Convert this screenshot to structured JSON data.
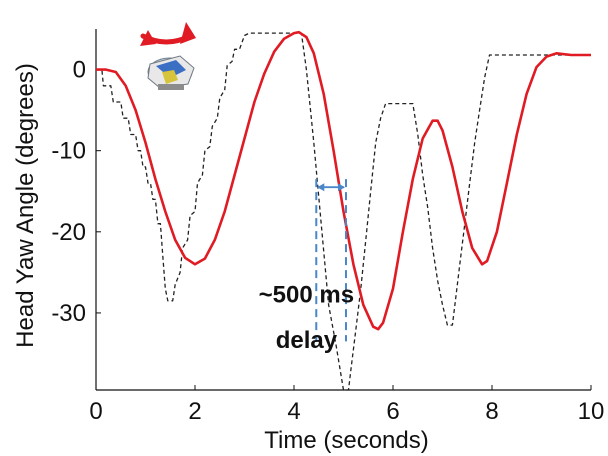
{
  "chart_data": {
    "type": "line",
    "title": "",
    "xlabel": "Time (seconds)",
    "ylabel": "Head Yaw Angle (degrees)",
    "xlim": [
      0,
      10
    ],
    "ylim": [
      -39.5,
      5
    ],
    "xticks": [
      0,
      2,
      4,
      6,
      8,
      10
    ],
    "yticks": [
      0,
      -10,
      -20,
      -30
    ],
    "grid": false,
    "legend": "none",
    "series": [
      {
        "style": "dashed",
        "color": "#222222",
        "points": [
          [
            0,
            0
          ],
          [
            0.12,
            0
          ],
          [
            0.15,
            -2
          ],
          [
            0.3,
            -2
          ],
          [
            0.35,
            -4
          ],
          [
            0.5,
            -4
          ],
          [
            0.55,
            -6
          ],
          [
            0.65,
            -6
          ],
          [
            0.7,
            -8
          ],
          [
            0.8,
            -8
          ],
          [
            0.85,
            -10
          ],
          [
            0.9,
            -10
          ],
          [
            0.95,
            -12
          ],
          [
            1.0,
            -12
          ],
          [
            1.05,
            -14
          ],
          [
            1.1,
            -14
          ],
          [
            1.15,
            -16
          ],
          [
            1.2,
            -16
          ],
          [
            1.25,
            -19
          ],
          [
            1.3,
            -19
          ],
          [
            1.35,
            -23
          ],
          [
            1.4,
            -27
          ],
          [
            1.45,
            -28.5
          ],
          [
            1.55,
            -28.5
          ],
          [
            1.6,
            -26.5
          ],
          [
            1.7,
            -25
          ],
          [
            1.75,
            -22
          ],
          [
            1.85,
            -21
          ],
          [
            1.9,
            -18
          ],
          [
            2.0,
            -17.5
          ],
          [
            2.05,
            -14
          ],
          [
            2.15,
            -13
          ],
          [
            2.2,
            -10
          ],
          [
            2.3,
            -9.5
          ],
          [
            2.35,
            -7
          ],
          [
            2.45,
            -6
          ],
          [
            2.5,
            -3.5
          ],
          [
            2.6,
            -2.5
          ],
          [
            2.65,
            0.5
          ],
          [
            2.75,
            1
          ],
          [
            2.8,
            2.5
          ],
          [
            2.9,
            2.5
          ],
          [
            3.0,
            4.2
          ],
          [
            3.1,
            4.5
          ],
          [
            4.0,
            4.5
          ],
          [
            4.15,
            4.5
          ],
          [
            4.25,
            0
          ],
          [
            4.4,
            -9
          ],
          [
            4.55,
            -19
          ],
          [
            4.7,
            -29
          ],
          [
            4.85,
            -34
          ],
          [
            5.0,
            -39.5
          ],
          [
            5.1,
            -39.5
          ],
          [
            5.15,
            -37
          ],
          [
            5.25,
            -32
          ],
          [
            5.35,
            -27
          ],
          [
            5.45,
            -21
          ],
          [
            5.55,
            -15
          ],
          [
            5.65,
            -9
          ],
          [
            5.75,
            -6
          ],
          [
            5.85,
            -4.2
          ],
          [
            6.4,
            -4.2
          ],
          [
            6.5,
            -8
          ],
          [
            6.6,
            -13
          ],
          [
            6.7,
            -17
          ],
          [
            6.8,
            -22
          ],
          [
            6.9,
            -26
          ],
          [
            7.0,
            -29
          ],
          [
            7.1,
            -31.5
          ],
          [
            7.2,
            -31.5
          ],
          [
            7.25,
            -29
          ],
          [
            7.35,
            -24
          ],
          [
            7.45,
            -19
          ],
          [
            7.55,
            -14
          ],
          [
            7.65,
            -9
          ],
          [
            7.75,
            -5
          ],
          [
            7.85,
            -1
          ],
          [
            7.95,
            1.8
          ],
          [
            9.0,
            1.8
          ],
          [
            10.0,
            1.8
          ]
        ]
      },
      {
        "style": "solid",
        "color": "#e01b24",
        "points": [
          [
            0,
            0
          ],
          [
            0.2,
            0
          ],
          [
            0.4,
            -0.3
          ],
          [
            0.6,
            -2
          ],
          [
            0.8,
            -5
          ],
          [
            1.0,
            -9
          ],
          [
            1.2,
            -13.5
          ],
          [
            1.4,
            -17.5
          ],
          [
            1.6,
            -21
          ],
          [
            1.8,
            -23.2
          ],
          [
            2.0,
            -24
          ],
          [
            2.2,
            -23.3
          ],
          [
            2.4,
            -21
          ],
          [
            2.6,
            -17.5
          ],
          [
            2.8,
            -13
          ],
          [
            3.0,
            -8.5
          ],
          [
            3.2,
            -4
          ],
          [
            3.4,
            -0.5
          ],
          [
            3.6,
            2.2
          ],
          [
            3.8,
            3.8
          ],
          [
            4.0,
            4.5
          ],
          [
            4.1,
            4.6
          ],
          [
            4.25,
            4
          ],
          [
            4.4,
            2
          ],
          [
            4.6,
            -3
          ],
          [
            4.8,
            -10
          ],
          [
            5.0,
            -17.5
          ],
          [
            5.2,
            -24
          ],
          [
            5.4,
            -29
          ],
          [
            5.6,
            -31.7
          ],
          [
            5.7,
            -32
          ],
          [
            5.8,
            -31.2
          ],
          [
            6.0,
            -27
          ],
          [
            6.2,
            -20
          ],
          [
            6.4,
            -13.5
          ],
          [
            6.6,
            -8.5
          ],
          [
            6.8,
            -6.3
          ],
          [
            6.9,
            -6.3
          ],
          [
            7.0,
            -7.5
          ],
          [
            7.2,
            -12
          ],
          [
            7.4,
            -17.5
          ],
          [
            7.6,
            -22
          ],
          [
            7.8,
            -24
          ],
          [
            7.9,
            -23.6
          ],
          [
            8.1,
            -20
          ],
          [
            8.3,
            -14
          ],
          [
            8.5,
            -8
          ],
          [
            8.7,
            -3
          ],
          [
            8.9,
            0.3
          ],
          [
            9.1,
            1.6
          ],
          [
            9.3,
            2
          ],
          [
            9.6,
            1.8
          ],
          [
            10.0,
            1.8
          ]
        ]
      }
    ],
    "annotations": [
      {
        "text": "~500 ms",
        "x": 4.25,
        "y": -28.7
      },
      {
        "text": "delay",
        "x": 4.25,
        "y": -34.3
      }
    ],
    "delay_markers": {
      "x_start": 4.45,
      "x_end": 5.05,
      "y_top": -13.5,
      "y_bottom": -33.5,
      "arrow_y": -14.5,
      "color": "#4a86c8"
    },
    "icon": {
      "name": "rotating-head-icon",
      "arrow_color": "#e01b24"
    }
  }
}
